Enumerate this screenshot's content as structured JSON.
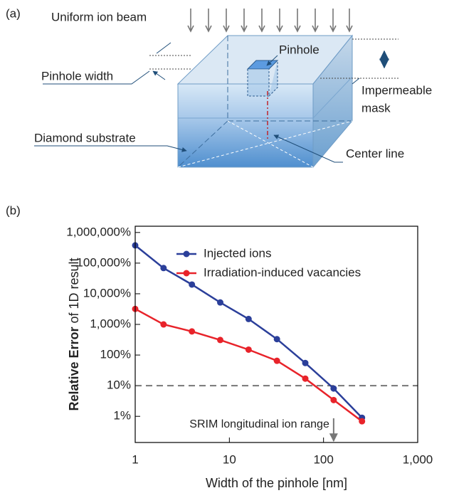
{
  "panel_labels": [
    "(a)",
    "(b)"
  ],
  "diagram": {
    "labels": [
      "Uniform ion beam",
      "Pinhole",
      "Pinhole width",
      "Impermeable",
      "mask",
      "Diamond substrate",
      "Center line"
    ]
  },
  "chart_data": {
    "type": "line",
    "xlabel": "Width of the pinhole [nm]",
    "ylabel": [
      "Relative Error",
      "of 1D result"
    ],
    "x": [
      1,
      2,
      4,
      8,
      16,
      32,
      64,
      128,
      256
    ],
    "series": [
      {
        "name": "Injected ions",
        "color": "#2b3f9a",
        "values": [
          380000,
          69000,
          20000,
          5200,
          1500,
          330,
          55,
          8.1,
          0.9
        ]
      },
      {
        "name": "Irradiation-induced vacancies",
        "color": "#e8232a",
        "values": [
          3200,
          1000,
          590,
          310,
          150,
          65,
          17,
          3.4,
          0.69
        ]
      }
    ],
    "xscale": "log",
    "yscale": "log",
    "xlim": [
      1,
      1000
    ],
    "ylim": [
      0.14,
      1600000
    ],
    "xticks": [
      1,
      10,
      100,
      {
        "value": 1000,
        "label": "1,000"
      }
    ],
    "yticks": [
      {
        "value": 1,
        "label": "1%"
      },
      {
        "value": 10,
        "label": "10%"
      },
      {
        "value": 100,
        "label": "100%"
      },
      {
        "value": 1000,
        "label": "1,000%"
      },
      {
        "value": 10000,
        "label": "10,000%"
      },
      {
        "value": 100000,
        "label": "100,000%"
      },
      {
        "value": 1000000,
        "label": "1,000,000%"
      }
    ],
    "reference_line": 10,
    "annotation": {
      "text": "SRIM longitudinal ion range",
      "x": 128
    },
    "legend": "upper right"
  }
}
